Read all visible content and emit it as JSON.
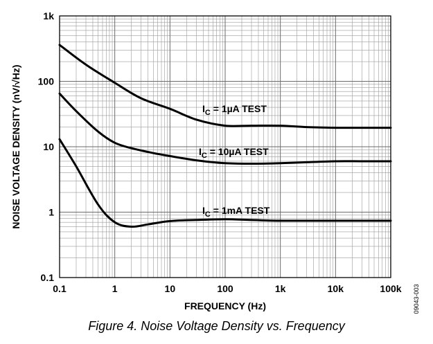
{
  "chart_data": {
    "type": "line",
    "xlabel": "FREQUENCY (Hz)",
    "ylabel": "NOISE VOLTAGE DENSITY (nV/√Hz)",
    "x_scale": "log",
    "y_scale": "log",
    "xlim": [
      0.1,
      100000
    ],
    "ylim": [
      0.1,
      1000
    ],
    "x_ticks": [
      {
        "value": 0.1,
        "label": "0.1"
      },
      {
        "value": 1,
        "label": "1"
      },
      {
        "value": 10,
        "label": "10"
      },
      {
        "value": 100,
        "label": "100"
      },
      {
        "value": 1000,
        "label": "1k"
      },
      {
        "value": 10000,
        "label": "10k"
      },
      {
        "value": 100000,
        "label": "100k"
      }
    ],
    "y_ticks": [
      {
        "value": 0.1,
        "label": "0.1"
      },
      {
        "value": 1,
        "label": "1"
      },
      {
        "value": 10,
        "label": "10"
      },
      {
        "value": 100,
        "label": "100"
      },
      {
        "value": 1000,
        "label": "1k"
      }
    ],
    "grid": true,
    "legend": "none",
    "series": [
      {
        "label_main": "I",
        "label_sub": "C",
        "label_rest": " = 1µA TEST",
        "points": [
          [
            0.1,
            360
          ],
          [
            0.3,
            180
          ],
          [
            1,
            95
          ],
          [
            3,
            55
          ],
          [
            10,
            38
          ],
          [
            30,
            26
          ],
          [
            100,
            21
          ],
          [
            300,
            21
          ],
          [
            1000,
            21
          ],
          [
            3000,
            20
          ],
          [
            10000,
            19.5
          ],
          [
            30000,
            19.5
          ],
          [
            100000,
            19.5
          ]
        ]
      },
      {
        "label_main": "I",
        "label_sub": "C",
        "label_rest": " = 10µA TEST",
        "points": [
          [
            0.1,
            65
          ],
          [
            0.2,
            35
          ],
          [
            0.5,
            17
          ],
          [
            1,
            11.5
          ],
          [
            2,
            9.5
          ],
          [
            5,
            8
          ],
          [
            10,
            7.2
          ],
          [
            30,
            6.2
          ],
          [
            100,
            5.6
          ],
          [
            300,
            5.5
          ],
          [
            1000,
            5.6
          ],
          [
            3000,
            5.8
          ],
          [
            10000,
            6
          ],
          [
            30000,
            6
          ],
          [
            100000,
            6
          ]
        ]
      },
      {
        "label_main": "I",
        "label_sub": "C",
        "label_rest": " = 1mA TEST",
        "points": [
          [
            0.1,
            13
          ],
          [
            0.2,
            5
          ],
          [
            0.5,
            1.3
          ],
          [
            1,
            0.7
          ],
          [
            2,
            0.6
          ],
          [
            4,
            0.65
          ],
          [
            10,
            0.73
          ],
          [
            30,
            0.76
          ],
          [
            100,
            0.78
          ],
          [
            300,
            0.76
          ],
          [
            1000,
            0.74
          ],
          [
            10000,
            0.74
          ],
          [
            100000,
            0.74
          ]
        ]
      }
    ]
  },
  "figure_id": "09043-003",
  "caption": "Figure 4. Noise Voltage Density vs. Frequency"
}
